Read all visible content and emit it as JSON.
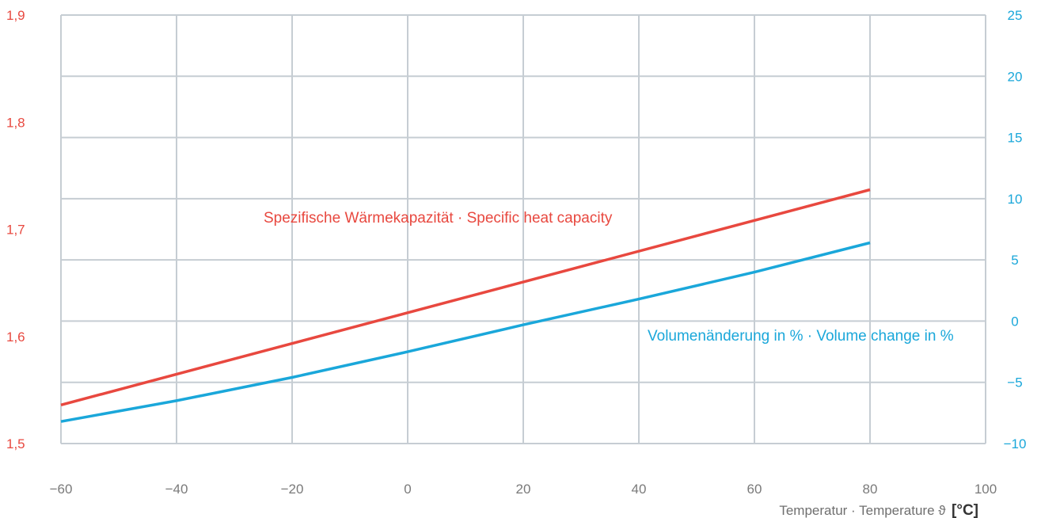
{
  "chart_data": {
    "type": "line",
    "xlabel_text": "Temperatur · Temperature ϑ",
    "xlabel_unit": "[°C]",
    "x_ticks": [
      "−60",
      "−40",
      "−20",
      "0",
      "20",
      "40",
      "60",
      "80",
      "100"
    ],
    "xlim": [
      -60,
      100
    ],
    "y_left": {
      "ticks": [
        "1,5",
        "1,6",
        "1,7",
        "1,8",
        "1,9"
      ],
      "ylim": [
        1.5,
        1.9
      ],
      "color": "#e8483f"
    },
    "y_right": {
      "ticks": [
        "−10",
        "−5",
        "0",
        "5",
        "10",
        "15",
        "20",
        "25"
      ],
      "ylim": [
        -10,
        25
      ],
      "color": "#1aa7da"
    },
    "grid": true,
    "series": [
      {
        "name": "Spezifische Wärmekapazität · Specific heat capacity",
        "axis": "left",
        "color": "#e8483f",
        "x": [
          -60,
          80
        ],
        "y": [
          1.536,
          1.737
        ]
      },
      {
        "name": "Volumenänderung in % · Volume change in %",
        "axis": "right",
        "color": "#1aa7da",
        "x": [
          -60,
          -40,
          -20,
          0,
          20,
          40,
          60,
          80
        ],
        "y": [
          -8.2,
          -6.5,
          -4.6,
          -2.5,
          -0.3,
          1.8,
          4.0,
          6.4
        ]
      }
    ]
  }
}
